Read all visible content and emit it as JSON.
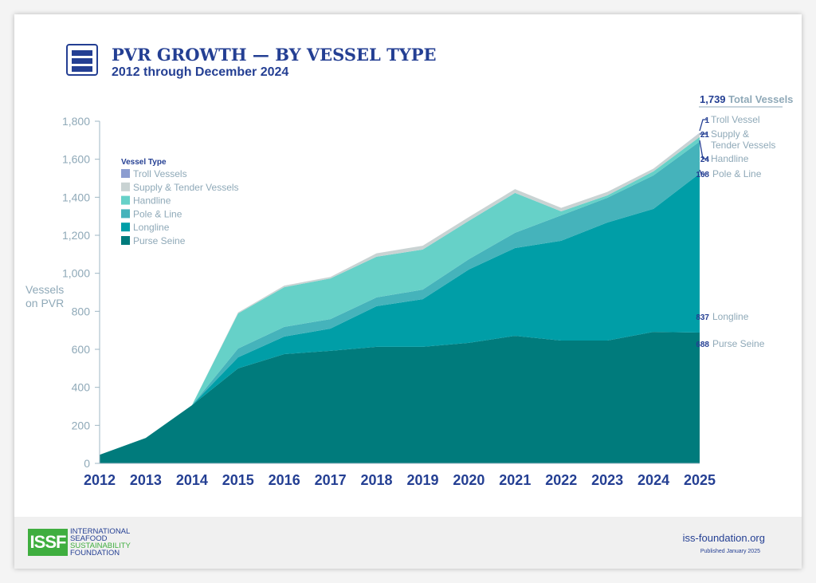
{
  "header": {
    "title": "PVR GROWTH — BY VESSEL TYPE",
    "subtitle": "2012 through December 2024",
    "icon": "list-menu-icon"
  },
  "footer": {
    "logo": "ISSF",
    "org_lines": [
      "INTERNATIONAL",
      "SEAFOOD",
      "SUSTAINABILITY",
      "FOUNDATION"
    ],
    "website": "iss-foundation.org",
    "published": "Published January 2025"
  },
  "chart_data": {
    "type": "area",
    "stacked": true,
    "ylabel": "Vessels on PVR",
    "ylim": [
      0,
      1800
    ],
    "yticks": [
      0,
      200,
      400,
      600,
      800,
      "1,000",
      "1,200",
      "1,400",
      "1,600",
      "1,800"
    ],
    "x": [
      2012,
      2013,
      2014,
      2015,
      2016,
      2017,
      2018,
      2019,
      2020,
      2021,
      2022,
      2023,
      2024,
      2025
    ],
    "grid": false,
    "legend_title": "Vessel Type",
    "legend_placement": "top-left",
    "series": [
      {
        "name": "Purse Seine",
        "color": "#007b7c",
        "values": [
          45,
          134,
          306,
          500,
          575,
          592,
          613,
          613,
          634,
          671,
          646,
          646,
          692,
          688
        ]
      },
      {
        "name": "Longline",
        "color": "#009ea7",
        "values": [
          0,
          0,
          0,
          58,
          92,
          117,
          214,
          251,
          386,
          462,
          525,
          621,
          647,
          837
        ]
      },
      {
        "name": "Pole & Line",
        "color": "#45b3bb",
        "values": [
          0,
          0,
          0,
          46,
          51,
          50,
          46,
          50,
          54,
          80,
          134,
          130,
          176,
          168
        ]
      },
      {
        "name": "Handline",
        "color": "#66d1c8",
        "values": [
          0,
          0,
          0,
          185,
          209,
          214,
          214,
          211,
          202,
          210,
          21,
          13,
          21,
          24
        ]
      },
      {
        "name": "Supply & Tender Vessels",
        "color": "#c9d3d3",
        "values": [
          0,
          0,
          0,
          5,
          8,
          8,
          18,
          20,
          20,
          20,
          18,
          18,
          15,
          21
        ]
      },
      {
        "name": "Troll Vessels",
        "color": "#8c9dd0",
        "values": [
          0,
          0,
          0,
          0,
          0,
          0,
          0,
          0,
          0,
          0,
          0,
          0,
          0,
          1
        ]
      }
    ],
    "total": {
      "value": "1,739",
      "label": "Total Vessels"
    },
    "end_labels": [
      {
        "value": "1",
        "label": "Troll Vessel"
      },
      {
        "value": "21",
        "label": "Supply &",
        "label2": "Tender Vessels"
      },
      {
        "value": "24",
        "label": "Handline"
      },
      {
        "value": "168",
        "label": "Pole & Line"
      },
      {
        "value": "837",
        "label": "Longline"
      },
      {
        "value": "688",
        "label": "Purse Seine"
      }
    ]
  }
}
